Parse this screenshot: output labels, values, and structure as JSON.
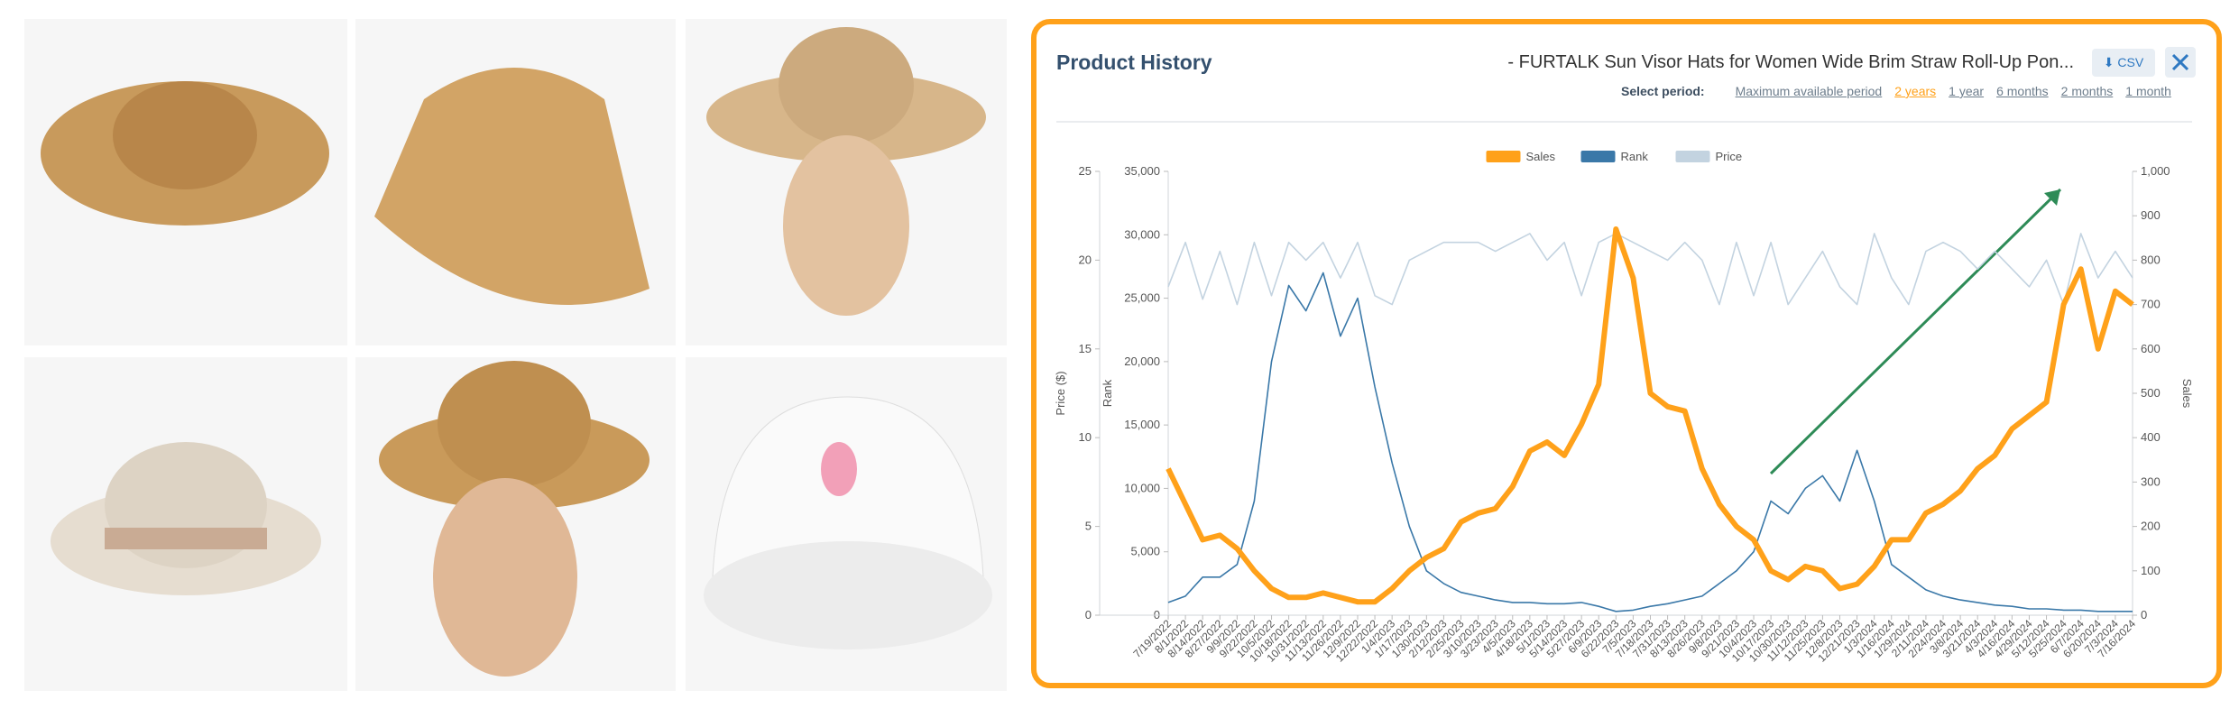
{
  "header": {
    "title": "Product History",
    "product": "- FURTALK Sun Visor Hats for Women Wide Brim Straw Roll-Up Pon...",
    "csv": "CSV"
  },
  "periods": {
    "label": "Select period:",
    "options": [
      "Maximum available period",
      "2 years",
      "1 year",
      "6 months",
      "2 months",
      "1 month"
    ],
    "active": 1
  },
  "chart_data": {
    "type": "line",
    "categories": [
      "7/19/2022",
      "8/1/2022",
      "8/14/2022",
      "8/27/2022",
      "9/9/2022",
      "9/22/2022",
      "10/5/2022",
      "10/18/2022",
      "10/31/2022",
      "11/13/2022",
      "11/26/2022",
      "12/9/2022",
      "12/22/2022",
      "1/4/2023",
      "1/17/2023",
      "1/30/2023",
      "2/12/2023",
      "2/25/2023",
      "3/10/2023",
      "3/23/2023",
      "4/5/2023",
      "4/18/2023",
      "5/1/2023",
      "5/14/2023",
      "5/27/2023",
      "6/9/2023",
      "6/22/2023",
      "7/5/2023",
      "7/18/2023",
      "7/31/2023",
      "8/13/2023",
      "8/26/2023",
      "9/8/2023",
      "9/21/2023",
      "10/4/2023",
      "10/17/2023",
      "10/30/2023",
      "11/12/2023",
      "11/25/2023",
      "12/8/2023",
      "12/21/2023",
      "1/3/2024",
      "1/16/2024",
      "1/29/2024",
      "2/11/2024",
      "2/24/2024",
      "3/8/2024",
      "3/21/2024",
      "4/3/2024",
      "4/16/2024",
      "4/29/2024",
      "5/12/2024",
      "5/25/2024",
      "6/7/2024",
      "6/20/2024",
      "7/3/2024",
      "7/16/2024"
    ],
    "series": [
      {
        "name": "Sales",
        "color": "#ffa11a",
        "axis": "y3",
        "values": [
          330,
          250,
          170,
          180,
          150,
          100,
          60,
          40,
          40,
          50,
          40,
          30,
          30,
          60,
          100,
          130,
          150,
          210,
          230,
          240,
          290,
          370,
          390,
          360,
          430,
          520,
          870,
          760,
          500,
          470,
          460,
          330,
          250,
          200,
          170,
          100,
          80,
          110,
          100,
          60,
          70,
          110,
          170,
          170,
          230,
          250,
          280,
          330,
          360,
          420,
          450,
          480,
          700,
          780,
          600,
          730,
          700
        ]
      },
      {
        "name": "Rank",
        "color": "#3a78a8",
        "axis": "y2",
        "values": [
          1000,
          1500,
          3000,
          3000,
          4000,
          9000,
          20000,
          26000,
          24000,
          27000,
          22000,
          25000,
          18000,
          12000,
          7000,
          3500,
          2500,
          1800,
          1500,
          1200,
          1000,
          1000,
          900,
          900,
          1000,
          700,
          300,
          400,
          700,
          900,
          1200,
          1500,
          2500,
          3500,
          5000,
          9000,
          8000,
          10000,
          11000,
          9000,
          13000,
          9000,
          4000,
          3000,
          2000,
          1500,
          1200,
          1000,
          800,
          700,
          500,
          500,
          400,
          400,
          300,
          300,
          300
        ]
      },
      {
        "name": "Price",
        "color": "#c3d3e0",
        "axis": "y",
        "values": [
          18.5,
          21,
          17.8,
          20.5,
          17.5,
          21,
          18,
          21,
          20,
          21,
          19,
          21,
          18,
          17.5,
          20,
          20.5,
          21,
          21,
          21,
          20.5,
          21,
          21.5,
          20,
          21,
          18,
          21,
          21.5,
          21,
          20.5,
          20,
          21,
          20,
          17.5,
          21,
          18,
          21,
          17.5,
          19,
          20.5,
          18.5,
          17.5,
          21.5,
          19,
          17.5,
          20.5,
          21,
          20.5,
          19.5,
          20.5,
          19.5,
          18.5,
          20,
          17.5,
          21.5,
          19,
          20.5,
          19
        ]
      }
    ],
    "ylabel": "Price ($)",
    "ylim": [
      0,
      25
    ],
    "yticks": [
      0,
      5,
      10,
      15,
      20,
      25
    ],
    "y2label": "Rank",
    "y2lim": [
      0,
      35000
    ],
    "y2ticks": [
      0,
      {
        "value": 5000,
        "label": "5,000"
      },
      {
        "value": 10000,
        "label": "10,000"
      },
      {
        "value": 15000,
        "label": "15,000"
      },
      {
        "value": 20000,
        "label": "20,000"
      },
      {
        "value": 25000,
        "label": "25,000"
      },
      {
        "value": 30000,
        "label": "30,000"
      },
      {
        "value": 35000,
        "label": "35,000"
      }
    ],
    "y3label": "Sales",
    "y3lim": [
      0,
      1000
    ],
    "y3ticks": [
      0,
      100,
      200,
      300,
      400,
      500,
      600,
      700,
      800,
      900,
      {
        "value": 1000,
        "label": "1,000"
      }
    ]
  }
}
